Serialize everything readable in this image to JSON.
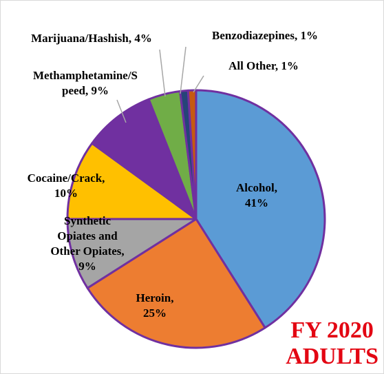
{
  "chart_data": {
    "type": "pie",
    "title": "FY 2020 ADULTS",
    "title_lines": [
      "FY 2020",
      "ADULTS"
    ],
    "slices": [
      {
        "name": "Alcohol",
        "value": 41,
        "label": [
          "Alcohol,",
          "41%"
        ],
        "color": "#5b9bd5"
      },
      {
        "name": "Heroin",
        "value": 25,
        "label": [
          "Heroin,",
          "25%"
        ],
        "color": "#ed7d31"
      },
      {
        "name": "Synthetic Opiates and Other Opiates",
        "value": 9,
        "label": [
          "Synthetic",
          "Opiates and",
          "Other Opiates,",
          "9%"
        ],
        "color": "#a5a5a5"
      },
      {
        "name": "Cocaine/Crack",
        "value": 10,
        "label": [
          "Cocaine/Crack,",
          "10%"
        ],
        "color": "#ffc000"
      },
      {
        "name": "Methamphetamine/Speed",
        "value": 9,
        "label": [
          "Methamphetamine/S",
          "peed, 9%"
        ],
        "color": "#7030a0"
      },
      {
        "name": "Marijuana/Hashish",
        "value": 4,
        "label": [
          "Marijuana/Hashish, 4%"
        ],
        "color": "#70ad47"
      },
      {
        "name": "Benzodiazepines",
        "value": 1,
        "label": [
          "Benzodiazepines, 1%"
        ],
        "color": "#264478"
      },
      {
        "name": "All Other",
        "value": 1,
        "label": [
          "All Other, 1%"
        ],
        "color": "#c55a11"
      }
    ],
    "start_angle_deg": 0,
    "direction": "clockwise",
    "legend": "none"
  }
}
